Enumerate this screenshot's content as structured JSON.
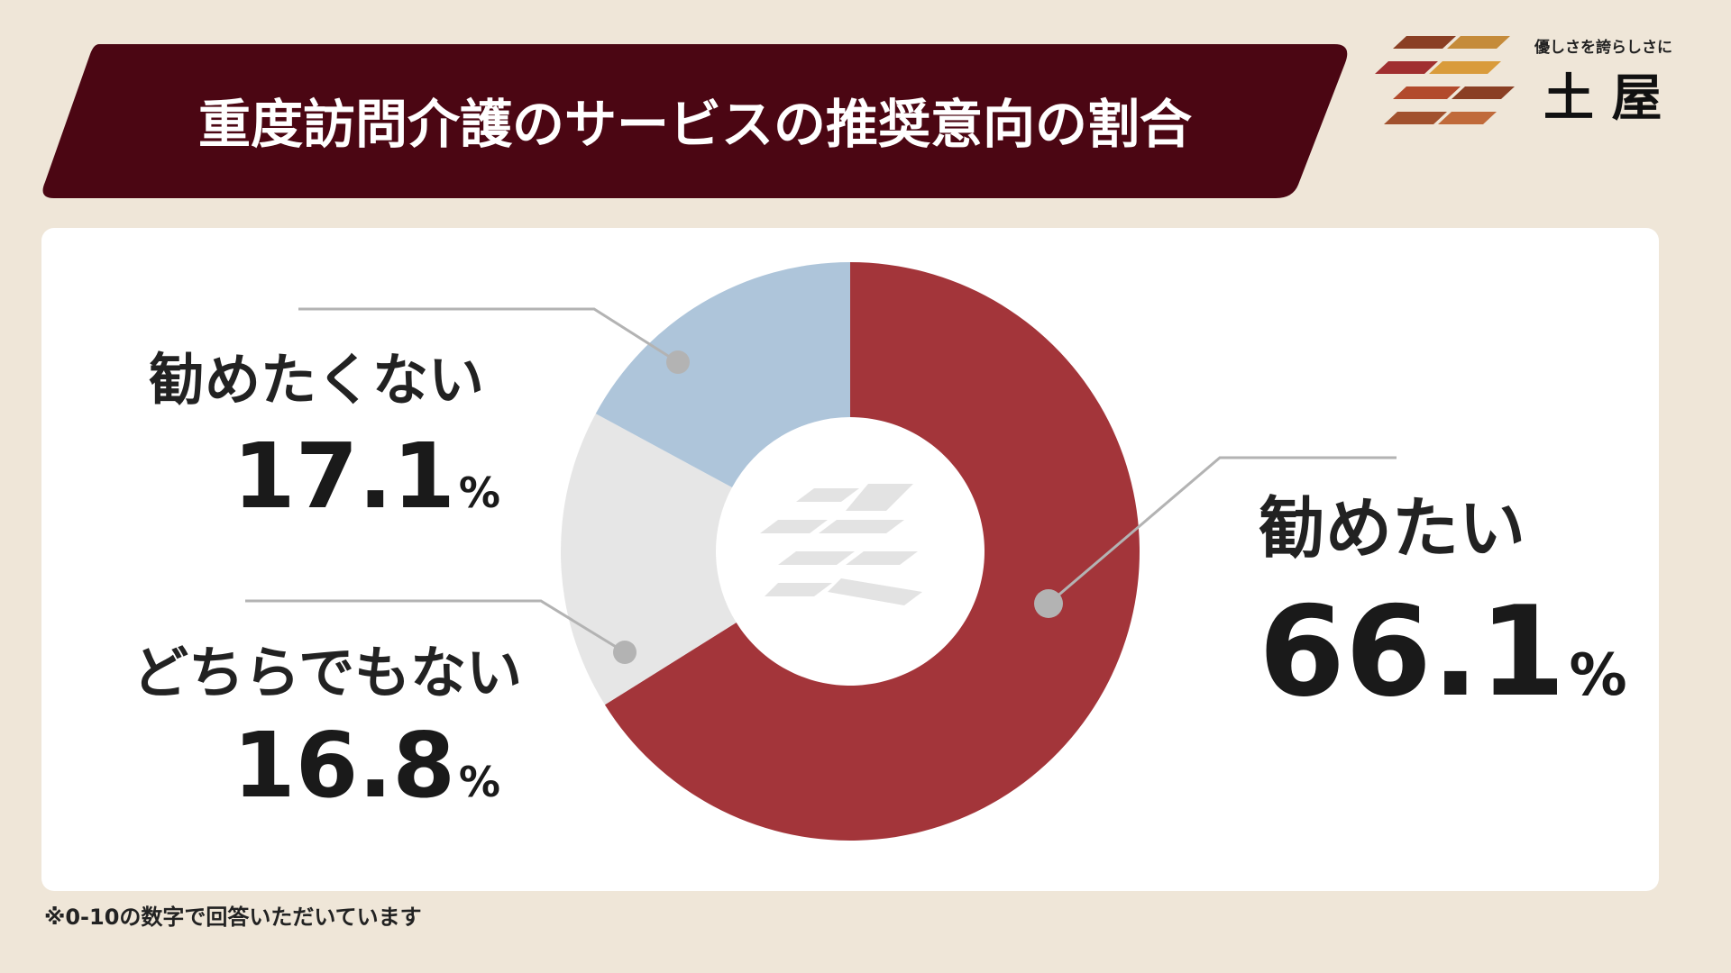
{
  "chart_data": {
    "type": "donut",
    "title": "重度訪問介護のサービスの推奨意向の割合",
    "categories": [
      "勧めたい",
      "どちらでもない",
      "勧めたくない"
    ],
    "values": [
      66.1,
      16.8,
      17.1
    ],
    "value_unit": "%",
    "colors": [
      "#a3353a",
      "#e6e6e6",
      "#aec5da"
    ],
    "footnote": "※0-10の数字で回答いただいています"
  },
  "brand": {
    "tagline": "優しさを誇らしさに",
    "name": "土 屋"
  }
}
